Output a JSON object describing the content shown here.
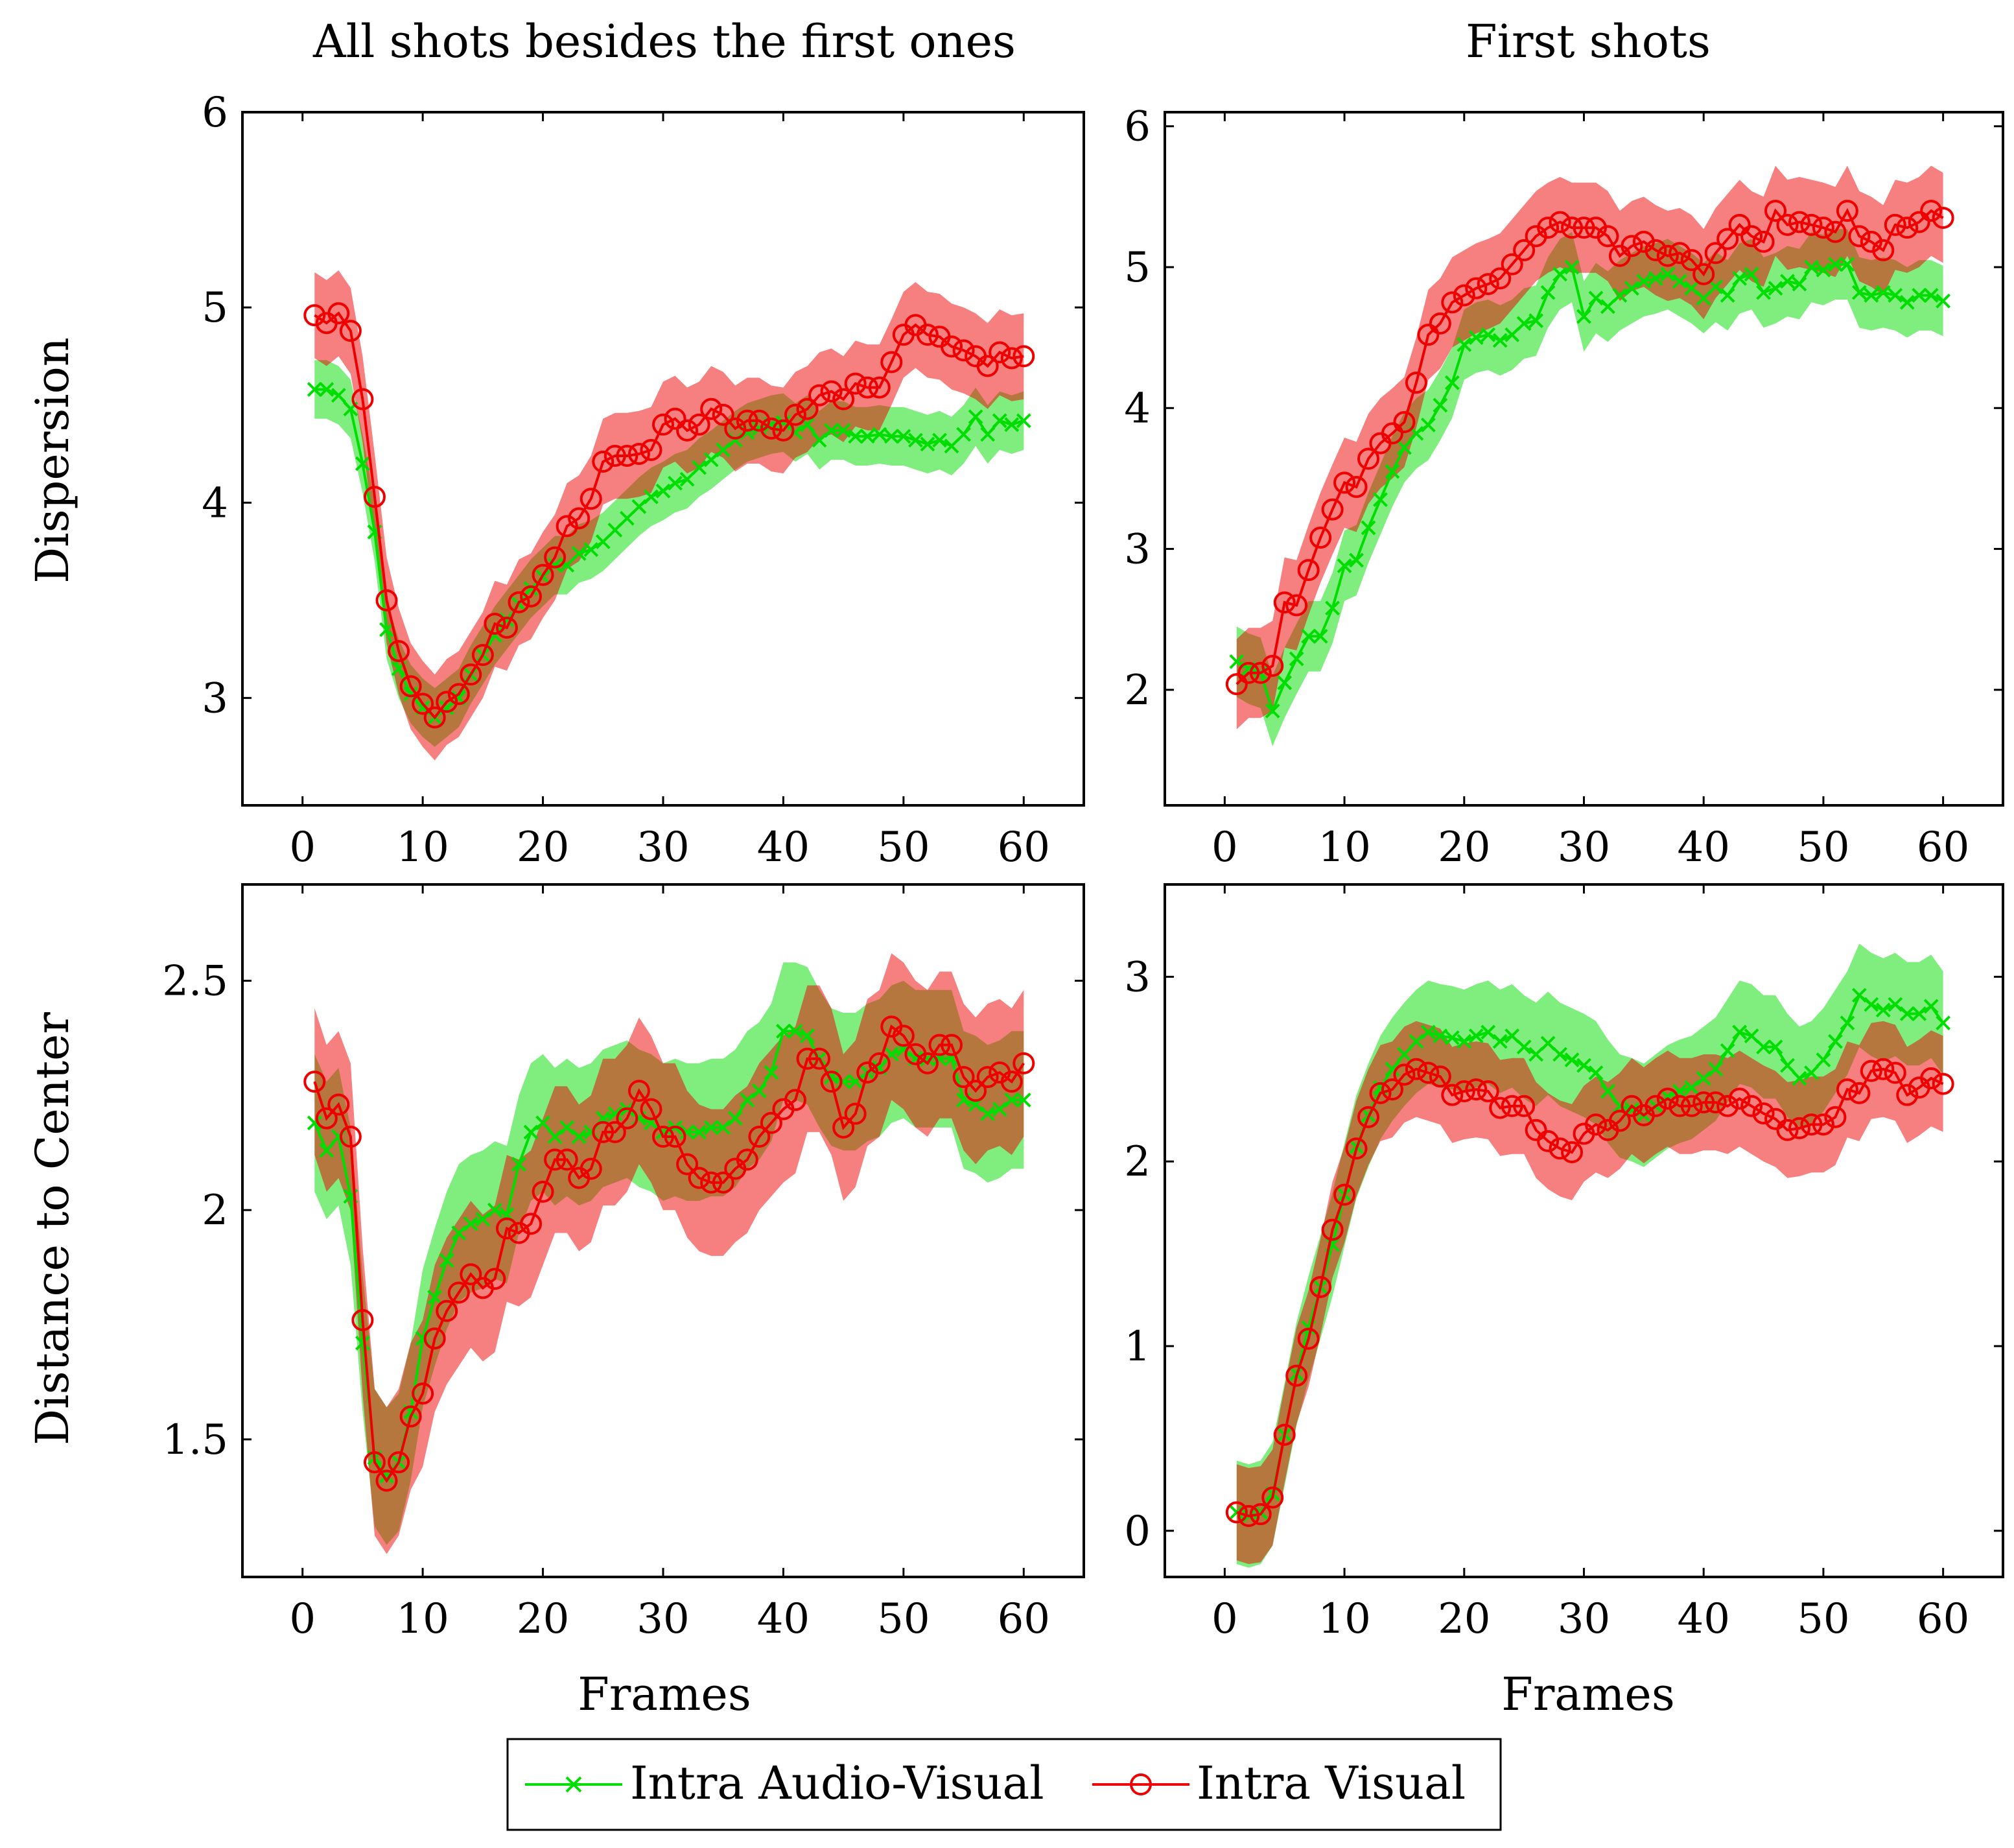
{
  "figure": {
    "column_titles": [
      "All shots besides the first ones",
      "First shots"
    ],
    "row_labels": [
      "Dispersion",
      "Distance to Center"
    ],
    "xlabel": "Frames",
    "legend": [
      {
        "label": "Intra Audio-Visual",
        "marker": "cross",
        "color": "#00dd00"
      },
      {
        "label": "Intra Visual",
        "marker": "circle",
        "color": "#ee0000"
      }
    ]
  },
  "chart_data": [
    {
      "type": "line",
      "title": "All shots besides the first ones",
      "ylabel": "Dispersion",
      "xlabel": "",
      "xlim": [
        -5,
        65
      ],
      "ylim": [
        2.45,
        6.0
      ],
      "xticks": [
        0,
        10,
        20,
        30,
        40,
        50,
        60
      ],
      "yticks": [
        3,
        4,
        5,
        6
      ],
      "ytick_labels": [
        "3",
        "4",
        "5",
        "6"
      ],
      "x": [
        1,
        2,
        3,
        4,
        5,
        6,
        7,
        8,
        9,
        10,
        11,
        12,
        13,
        14,
        15,
        16,
        17,
        18,
        19,
        20,
        21,
        22,
        23,
        24,
        25,
        26,
        27,
        28,
        29,
        30,
        31,
        32,
        33,
        34,
        35,
        36,
        37,
        38,
        39,
        40,
        41,
        42,
        43,
        44,
        45,
        46,
        47,
        48,
        49,
        50,
        51,
        52,
        53,
        54,
        55,
        56,
        57,
        58,
        59,
        60
      ],
      "series": [
        {
          "name": "Intra Audio-Visual",
          "color": "#00dd00",
          "marker": "cross",
          "band": 0.15,
          "values": [
            4.58,
            4.58,
            4.55,
            4.48,
            4.2,
            3.85,
            3.35,
            3.15,
            3.02,
            2.95,
            2.9,
            2.95,
            3.0,
            3.12,
            3.22,
            3.32,
            3.4,
            3.48,
            3.56,
            3.62,
            3.68,
            3.68,
            3.74,
            3.76,
            3.8,
            3.86,
            3.92,
            3.98,
            4.03,
            4.06,
            4.1,
            4.12,
            4.18,
            4.22,
            4.27,
            4.32,
            4.36,
            4.38,
            4.4,
            4.41,
            4.36,
            4.4,
            4.32,
            4.37,
            4.37,
            4.34,
            4.34,
            4.35,
            4.34,
            4.34,
            4.32,
            4.3,
            4.32,
            4.29,
            4.35,
            4.44,
            4.35,
            4.42,
            4.4,
            4.42
          ]
        },
        {
          "name": "Intra Visual",
          "color": "#ee0000",
          "marker": "circle",
          "band": 0.22,
          "values": [
            4.96,
            4.92,
            4.97,
            4.88,
            4.53,
            4.03,
            3.5,
            3.24,
            3.06,
            2.97,
            2.9,
            2.98,
            3.02,
            3.12,
            3.22,
            3.38,
            3.36,
            3.49,
            3.52,
            3.63,
            3.72,
            3.88,
            3.92,
            4.02,
            4.21,
            4.24,
            4.24,
            4.25,
            4.27,
            4.4,
            4.43,
            4.37,
            4.4,
            4.48,
            4.45,
            4.38,
            4.42,
            4.42,
            4.38,
            4.37,
            4.45,
            4.48,
            4.55,
            4.57,
            4.53,
            4.61,
            4.59,
            4.59,
            4.72,
            4.86,
            4.91,
            4.86,
            4.85,
            4.8,
            4.78,
            4.75,
            4.7,
            4.77,
            4.74,
            4.75
          ]
        }
      ]
    },
    {
      "type": "line",
      "title": "First shots",
      "ylabel": "",
      "xlabel": "",
      "xlim": [
        -5,
        65
      ],
      "ylim": [
        1.18,
        6.1
      ],
      "xticks": [
        0,
        10,
        20,
        30,
        40,
        50,
        60
      ],
      "yticks": [
        2,
        3,
        4,
        5,
        6
      ],
      "ytick_labels": [
        "2",
        "3",
        "4",
        "5",
        "6"
      ],
      "x": [
        1,
        2,
        3,
        4,
        5,
        6,
        7,
        8,
        9,
        10,
        11,
        12,
        13,
        14,
        15,
        16,
        17,
        18,
        19,
        20,
        21,
        22,
        23,
        24,
        25,
        26,
        27,
        28,
        29,
        30,
        31,
        32,
        33,
        34,
        35,
        36,
        37,
        38,
        39,
        40,
        41,
        42,
        43,
        44,
        45,
        46,
        47,
        48,
        49,
        50,
        51,
        52,
        53,
        54,
        55,
        56,
        57,
        58,
        59,
        60
      ],
      "series": [
        {
          "name": "Intra Audio-Visual",
          "color": "#00dd00",
          "marker": "cross",
          "band": 0.25,
          "values": [
            2.2,
            2.15,
            2.12,
            1.85,
            2.05,
            2.22,
            2.38,
            2.38,
            2.58,
            2.88,
            2.92,
            3.15,
            3.35,
            3.55,
            3.72,
            3.82,
            3.88,
            4.02,
            4.18,
            4.45,
            4.5,
            4.52,
            4.48,
            4.52,
            4.6,
            4.62,
            4.82,
            4.95,
            5.0,
            4.65,
            4.78,
            4.72,
            4.8,
            4.85,
            4.9,
            4.92,
            4.95,
            4.9,
            4.85,
            4.78,
            4.86,
            4.8,
            4.92,
            4.95,
            4.82,
            4.85,
            4.9,
            4.88,
            5.0,
            4.98,
            5.02,
            5.02,
            4.82,
            4.8,
            4.82,
            4.8,
            4.75,
            4.8,
            4.8,
            4.76
          ]
        },
        {
          "name": "Intra Visual",
          "color": "#ee0000",
          "marker": "circle",
          "band": 0.32,
          "values": [
            2.04,
            2.12,
            2.12,
            2.17,
            2.62,
            2.6,
            2.85,
            3.08,
            3.28,
            3.47,
            3.44,
            3.64,
            3.75,
            3.82,
            3.9,
            4.18,
            4.52,
            4.6,
            4.75,
            4.8,
            4.85,
            4.88,
            4.92,
            5.02,
            5.12,
            5.22,
            5.28,
            5.32,
            5.28,
            5.28,
            5.28,
            5.22,
            5.08,
            5.15,
            5.18,
            5.12,
            5.08,
            5.1,
            5.05,
            4.95,
            5.1,
            5.2,
            5.3,
            5.22,
            5.18,
            5.4,
            5.3,
            5.32,
            5.3,
            5.28,
            5.25,
            5.4,
            5.22,
            5.18,
            5.12,
            5.3,
            5.28,
            5.32,
            5.4,
            5.35
          ]
        }
      ]
    },
    {
      "type": "line",
      "title": "",
      "ylabel": "Distance to Center",
      "xlabel": "Frames",
      "xlim": [
        -5,
        65
      ],
      "ylim": [
        1.2,
        2.71
      ],
      "xticks": [
        0,
        10,
        20,
        30,
        40,
        50,
        60
      ],
      "yticks": [
        1.5,
        2,
        2.5
      ],
      "ytick_labels": [
        "1.5",
        "2",
        "2.5"
      ],
      "x": [
        1,
        2,
        3,
        4,
        5,
        6,
        7,
        8,
        9,
        10,
        11,
        12,
        13,
        14,
        15,
        16,
        17,
        18,
        19,
        20,
        21,
        22,
        23,
        24,
        25,
        26,
        27,
        28,
        29,
        30,
        31,
        32,
        33,
        34,
        35,
        36,
        37,
        38,
        39,
        40,
        41,
        42,
        43,
        44,
        45,
        46,
        47,
        48,
        49,
        50,
        51,
        52,
        53,
        54,
        55,
        56,
        57,
        58,
        59,
        60
      ],
      "series": [
        {
          "name": "Intra Audio-Visual",
          "color": "#00dd00",
          "marker": "cross",
          "band": 0.15,
          "values": [
            2.19,
            2.13,
            2.16,
            2.03,
            1.71,
            1.46,
            1.42,
            1.45,
            1.56,
            1.72,
            1.81,
            1.89,
            1.95,
            1.97,
            1.98,
            2.0,
            1.99,
            2.1,
            2.17,
            2.19,
            2.16,
            2.18,
            2.16,
            2.17,
            2.2,
            2.21,
            2.22,
            2.2,
            2.19,
            2.17,
            2.18,
            2.17,
            2.17,
            2.18,
            2.18,
            2.2,
            2.24,
            2.26,
            2.3,
            2.39,
            2.39,
            2.38,
            2.33,
            2.29,
            2.28,
            2.28,
            2.3,
            2.31,
            2.34,
            2.35,
            2.33,
            2.33,
            2.33,
            2.33,
            2.24,
            2.23,
            2.21,
            2.22,
            2.24,
            2.24
          ]
        },
        {
          "name": "Intra Visual",
          "color": "#ee0000",
          "marker": "circle",
          "band": 0.16,
          "values": [
            2.28,
            2.2,
            2.23,
            2.16,
            1.76,
            1.45,
            1.41,
            1.45,
            1.55,
            1.6,
            1.72,
            1.78,
            1.82,
            1.86,
            1.83,
            1.85,
            1.96,
            1.95,
            1.97,
            2.04,
            2.11,
            2.11,
            2.07,
            2.09,
            2.17,
            2.17,
            2.2,
            2.26,
            2.22,
            2.16,
            2.16,
            2.1,
            2.07,
            2.06,
            2.06,
            2.09,
            2.11,
            2.16,
            2.19,
            2.22,
            2.24,
            2.33,
            2.33,
            2.28,
            2.18,
            2.21,
            2.3,
            2.32,
            2.4,
            2.38,
            2.34,
            2.32,
            2.36,
            2.36,
            2.29,
            2.26,
            2.29,
            2.3,
            2.28,
            2.32
          ]
        }
      ]
    },
    {
      "type": "line",
      "title": "",
      "ylabel": "",
      "xlabel": "Frames",
      "xlim": [
        -5,
        65
      ],
      "ylim": [
        -0.25,
        3.5
      ],
      "xticks": [
        0,
        10,
        20,
        30,
        40,
        50,
        60
      ],
      "yticks": [
        0,
        1,
        2,
        3
      ],
      "ytick_labels": [
        "0",
        "1",
        "2",
        "3"
      ],
      "x": [
        1,
        2,
        3,
        4,
        5,
        6,
        7,
        8,
        9,
        10,
        11,
        12,
        13,
        14,
        15,
        16,
        17,
        18,
        19,
        20,
        21,
        22,
        23,
        24,
        25,
        26,
        27,
        28,
        29,
        30,
        31,
        32,
        33,
        34,
        35,
        36,
        37,
        38,
        39,
        40,
        41,
        42,
        43,
        44,
        45,
        46,
        47,
        48,
        49,
        50,
        51,
        52,
        53,
        54,
        55,
        56,
        57,
        58,
        59,
        60
      ],
      "series": [
        {
          "name": "Intra Audio-Visual",
          "color": "#00dd00",
          "marker": "cross",
          "band": 0.28,
          "values": [
            0.1,
            0.08,
            0.1,
            0.2,
            0.52,
            0.85,
            1.1,
            1.32,
            1.55,
            1.82,
            2.08,
            2.25,
            2.4,
            2.5,
            2.58,
            2.65,
            2.7,
            2.68,
            2.67,
            2.65,
            2.68,
            2.7,
            2.65,
            2.68,
            2.62,
            2.58,
            2.64,
            2.58,
            2.55,
            2.52,
            2.48,
            2.38,
            2.3,
            2.28,
            2.25,
            2.3,
            2.35,
            2.38,
            2.4,
            2.45,
            2.5,
            2.6,
            2.7,
            2.68,
            2.62,
            2.62,
            2.52,
            2.45,
            2.48,
            2.55,
            2.65,
            2.75,
            2.9,
            2.85,
            2.82,
            2.85,
            2.8,
            2.8,
            2.84,
            2.75
          ]
        },
        {
          "name": "Intra Visual",
          "color": "#ee0000",
          "marker": "circle",
          "band": 0.26,
          "values": [
            0.1,
            0.08,
            0.09,
            0.18,
            0.52,
            0.84,
            1.04,
            1.32,
            1.63,
            1.82,
            2.07,
            2.24,
            2.37,
            2.39,
            2.47,
            2.5,
            2.48,
            2.46,
            2.36,
            2.38,
            2.39,
            2.38,
            2.29,
            2.3,
            2.3,
            2.17,
            2.11,
            2.07,
            2.05,
            2.15,
            2.2,
            2.17,
            2.22,
            2.3,
            2.25,
            2.3,
            2.34,
            2.3,
            2.3,
            2.32,
            2.32,
            2.3,
            2.34,
            2.3,
            2.26,
            2.23,
            2.17,
            2.18,
            2.2,
            2.2,
            2.24,
            2.39,
            2.37,
            2.49,
            2.5,
            2.48,
            2.36,
            2.4,
            2.45,
            2.42
          ]
        }
      ]
    }
  ]
}
